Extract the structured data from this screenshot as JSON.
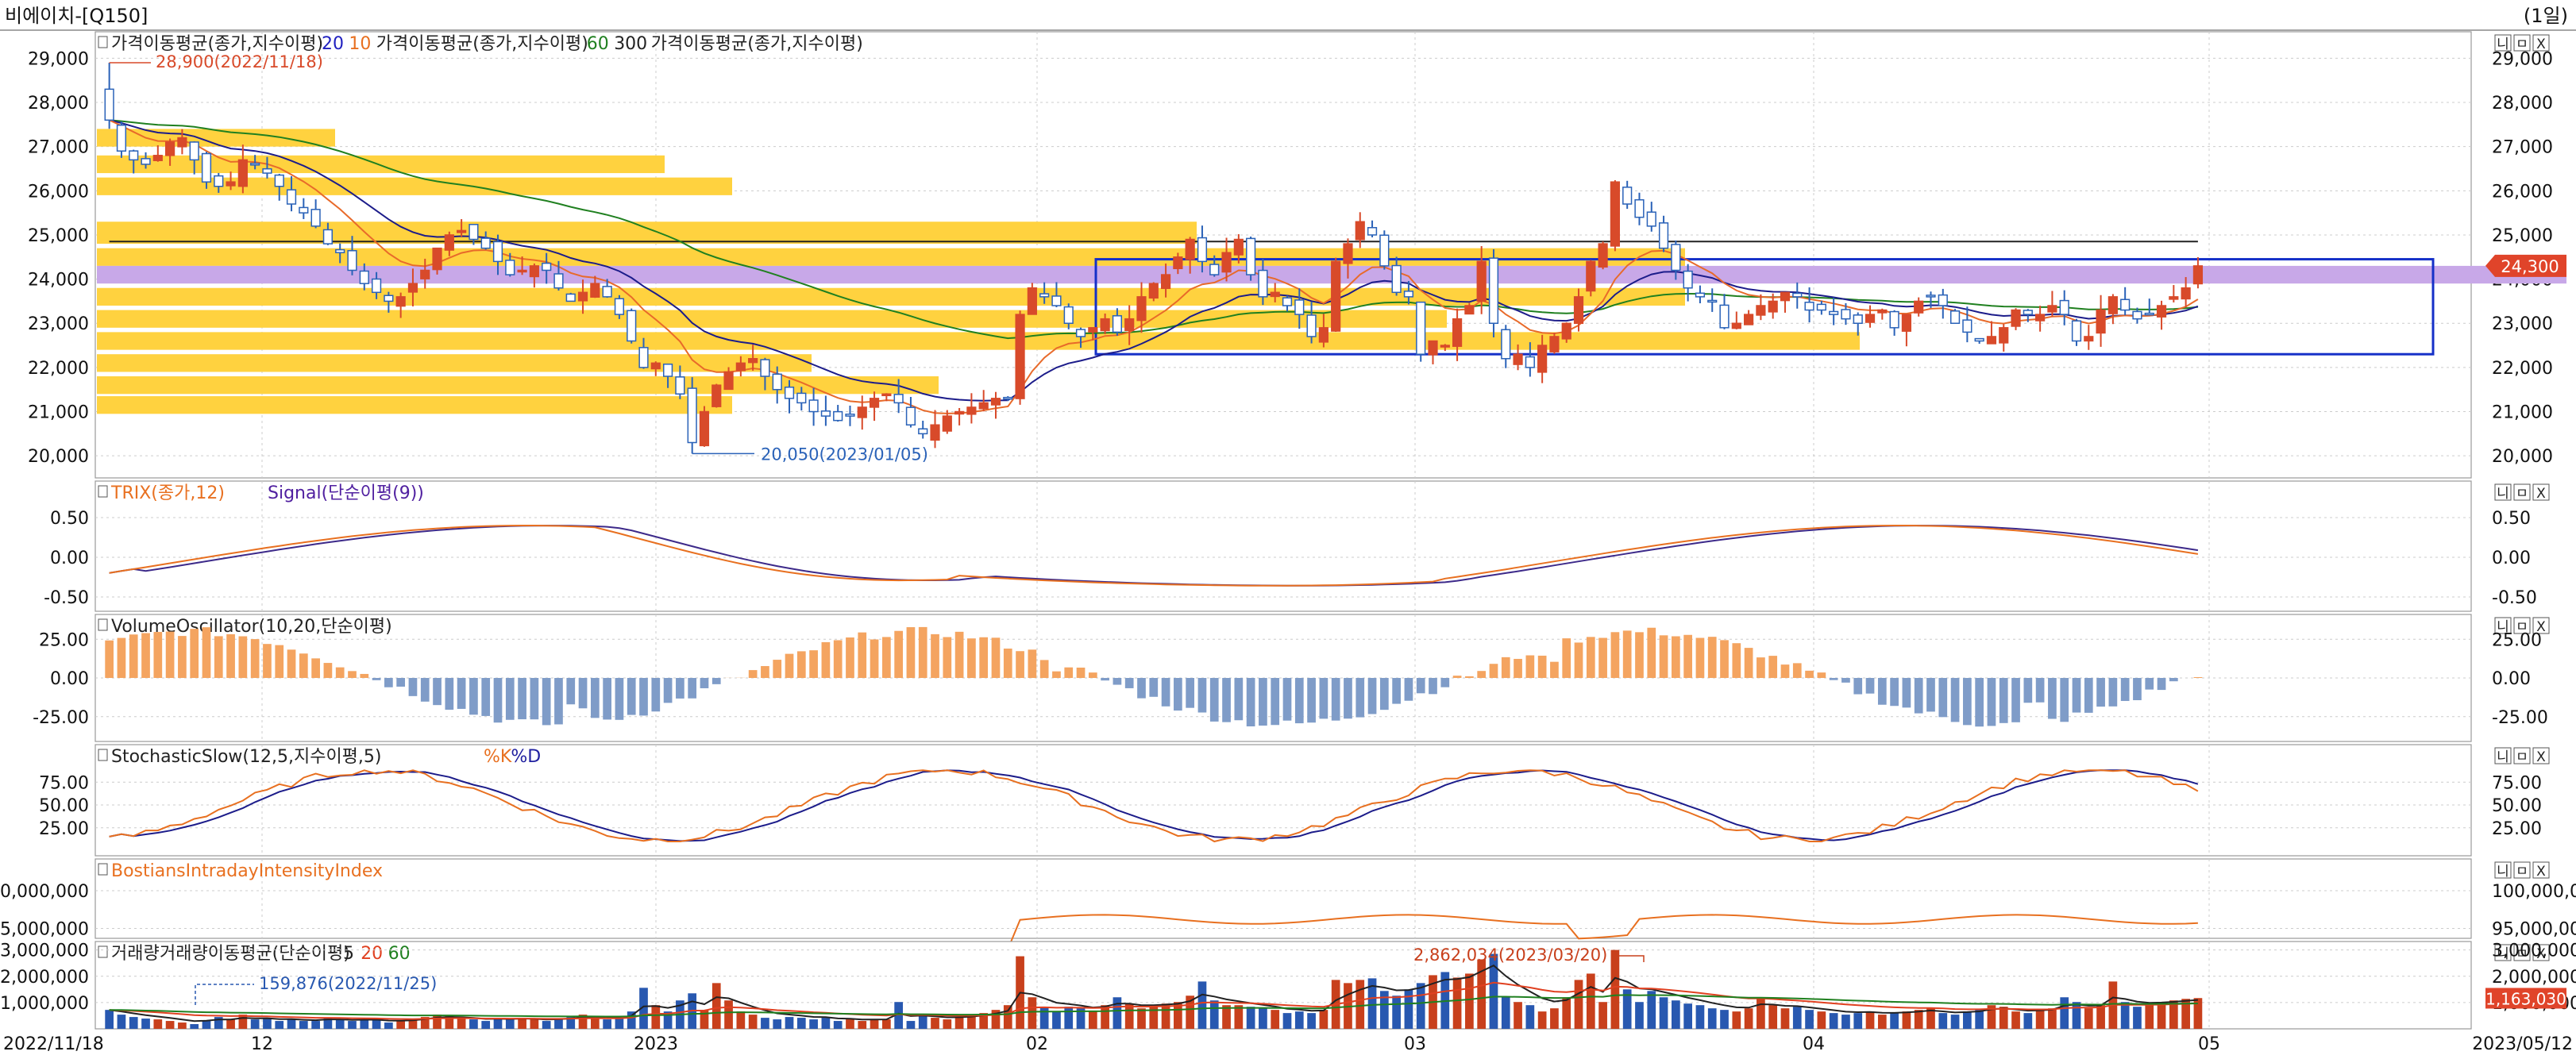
{
  "window": {
    "title": "비에이치-[Q150]",
    "period": "(1일)"
  },
  "panel_buttons": [
    "니",
    "ㅁ",
    "X"
  ],
  "price": {
    "legend": [
      {
        "text": "가격이동평균(종가,지수이평)",
        "color": "#222222"
      },
      {
        "text": "20",
        "color": "#2020c0"
      },
      {
        "text": "10",
        "color": "#e87020"
      },
      {
        "text": "가격이동평균(종가,지수이평)",
        "color": "#222222"
      },
      {
        "text": "60",
        "color": "#208020"
      },
      {
        "text": "300",
        "color": "#222222"
      },
      {
        "text": "가격이동평균(종가,지수이평)",
        "color": "#222222"
      }
    ],
    "y_ticks": [
      "29,000",
      "28,000",
      "27,000",
      "26,000",
      "25,000",
      "24,000",
      "23,000",
      "22,000",
      "21,000",
      "20,000"
    ],
    "y_min": 19500,
    "y_max": 29600,
    "high_annotation": "28,900(2022/11/18)",
    "low_annotation": "20,050(2023/01/05)",
    "current_price": "24,300",
    "up_color": "#d84a2a",
    "down_color": "#2a62b8",
    "volume_profile_color": "#ffd23f",
    "poc_color": "#c8a8e8",
    "box_color": "#1530c8"
  },
  "trix": {
    "legend": [
      {
        "text": "TRIX(종가,12)",
        "color": "#e87020"
      },
      {
        "text": "Signal(단순이평(9))",
        "color": "#5020a0"
      }
    ],
    "y_ticks": [
      "0.50",
      "0.00",
      "-0.50"
    ]
  },
  "volume_osc": {
    "legend": [
      {
        "text": "VolumeOscillator(10,20,단순이평)",
        "color": "#222222"
      }
    ],
    "y_ticks": [
      "25.00",
      "0.00",
      "-25.00"
    ],
    "pos_color": "#f4a460",
    "neg_color": "#7f9cc8"
  },
  "stochastic": {
    "legend": [
      {
        "text": "StochasticSlow(12,5,지수이평,5)",
        "color": "#222222"
      },
      {
        "text": "%K",
        "color": "#e87020"
      },
      {
        "text": "%D",
        "color": "#2020a0"
      }
    ],
    "y_ticks": [
      "75.00",
      "50.00",
      "25.00"
    ]
  },
  "bostian": {
    "legend": [
      {
        "text": "BostiansIntradayIntensityIndex",
        "color": "#e87020"
      }
    ],
    "y_ticks": [
      "100,000,000",
      "95,000,000"
    ]
  },
  "volume": {
    "legend": [
      {
        "text": "거래량",
        "color": "#222222"
      },
      {
        "text": "거래량이동평균(단순이평)",
        "color": "#222222"
      },
      {
        "text": "5",
        "color": "#222222"
      },
      {
        "text": "20",
        "color": "#e04020"
      },
      {
        "text": "60",
        "color": "#208020"
      }
    ],
    "y_ticks": [
      "3,000,000",
      "2,000,000",
      "1,000,000"
    ],
    "max_annotation": "2,862,034(2023/03/20)",
    "min_annotation": "159,876(2022/11/25)",
    "current_volume": "1,163,030"
  },
  "x_axis": {
    "labels": [
      "2022/11/18",
      "12",
      "2023",
      "02",
      "03",
      "04",
      "05",
      "2023/05/12"
    ]
  },
  "chart_data": {
    "type": "candlestick",
    "period": "daily",
    "date_range": [
      "2022/11/18",
      "2023/05/12"
    ],
    "price_axis": {
      "min": 19500,
      "max": 29600
    },
    "annotations": [
      {
        "label": "28,900(2022/11/18)",
        "value": 28900
      },
      {
        "label": "20,050(2023/01/05)",
        "value": 20050
      },
      {
        "label": "2,862,034(2023/03/20)",
        "value": 2862034
      },
      {
        "label": "159,876(2022/11/25)",
        "value": 159876
      }
    ],
    "last_close": 24300,
    "last_volume": 1163030,
    "close": [
      27600,
      26900,
      26700,
      26600,
      26800,
      27100,
      27200,
      26700,
      26200,
      26100,
      26200,
      26700,
      26600,
      26400,
      26100,
      25700,
      25500,
      25200,
      24800,
      24600,
      24200,
      23900,
      23700,
      23500,
      23600,
      23900,
      24200,
      24700,
      25000,
      25100,
      24900,
      24700,
      24400,
      24100,
      24200,
      24300,
      24200,
      23800,
      23500,
      23700,
      23900,
      23600,
      23200,
      22600,
      22000,
      22100,
      21800,
      21400,
      20300,
      21000,
      21600,
      21900,
      22100,
      22200,
      21800,
      21500,
      21300,
      21200,
      21000,
      20900,
      20800,
      20900,
      21100,
      21300,
      21400,
      21200,
      20700,
      20500,
      20700,
      20900,
      21000,
      21100,
      21200,
      21300,
      21300,
      23200,
      23800,
      23600,
      23400,
      23000,
      22700,
      22900,
      23100,
      22800,
      23100,
      23600,
      23900,
      24100,
      24500,
      24900,
      24400,
      24100,
      24600,
      24900,
      24100,
      23600,
      23700,
      23400,
      23200,
      22700,
      22900,
      24400,
      24800,
      25300,
      25000,
      24300,
      23700,
      23600,
      22300,
      22600,
      22500,
      23100,
      23400,
      24400,
      23000,
      22200,
      22300,
      22000,
      22500,
      22700,
      23000,
      23600,
      24400,
      24800,
      26200,
      25700,
      25400,
      25200,
      24700,
      24200,
      23800,
      23600,
      23500,
      22900,
      23000,
      23200,
      23400,
      23500,
      23700,
      23600,
      23300,
      23300,
      23200,
      23100,
      23000,
      23200,
      23300,
      22900,
      23200,
      23500,
      23600,
      23400,
      23000,
      22800,
      22600,
      22700,
      22900,
      23300,
      23200,
      23200,
      23400,
      23200,
      22600,
      22700,
      23300,
      23600,
      23300,
      23100,
      23200,
      23400,
      23600,
      23800,
      24300
    ],
    "volume_max": 3000000,
    "volume_ratio": [
      0.24,
      0.18,
      0.15,
      0.13,
      0.12,
      0.1,
      0.08,
      0.06,
      0.11,
      0.15,
      0.12,
      0.18,
      0.12,
      0.14,
      0.1,
      0.12,
      0.1,
      0.1,
      0.14,
      0.12,
      0.1,
      0.12,
      0.12,
      0.08,
      0.1,
      0.12,
      0.15,
      0.18,
      0.17,
      0.14,
      0.12,
      0.1,
      0.13,
      0.12,
      0.14,
      0.12,
      0.1,
      0.13,
      0.15,
      0.18,
      0.14,
      0.12,
      0.14,
      0.22,
      0.52,
      0.3,
      0.22,
      0.36,
      0.45,
      0.24,
      0.58,
      0.36,
      0.22,
      0.18,
      0.14,
      0.12,
      0.15,
      0.14,
      0.12,
      0.14,
      0.1,
      0.12,
      0.1,
      0.12,
      0.12,
      0.34,
      0.1,
      0.18,
      0.14,
      0.12,
      0.15,
      0.17,
      0.2,
      0.24,
      0.3,
      0.92,
      0.4,
      0.28,
      0.22,
      0.28,
      0.26,
      0.22,
      0.3,
      0.4,
      0.32,
      0.26,
      0.3,
      0.32,
      0.34,
      0.42,
      0.6,
      0.36,
      0.3,
      0.3,
      0.28,
      0.26,
      0.24,
      0.2,
      0.22,
      0.2,
      0.24,
      0.62,
      0.58,
      0.62,
      0.64,
      0.48,
      0.42,
      0.5,
      0.58,
      0.68,
      0.72,
      0.65,
      0.7,
      0.88,
      0.95,
      0.4,
      0.34,
      0.3,
      0.22,
      0.26,
      0.4,
      0.62,
      0.7,
      0.34,
      1.0,
      0.5,
      0.34,
      0.48,
      0.4,
      0.36,
      0.32,
      0.3,
      0.26,
      0.24,
      0.22,
      0.26,
      0.4,
      0.3,
      0.26,
      0.28,
      0.24,
      0.22,
      0.2,
      0.18,
      0.2,
      0.22,
      0.18,
      0.2,
      0.22,
      0.24,
      0.26,
      0.2,
      0.18,
      0.22,
      0.24,
      0.3,
      0.28,
      0.22,
      0.2,
      0.24,
      0.26,
      0.4,
      0.34,
      0.26,
      0.3,
      0.6,
      0.34,
      0.28,
      0.3,
      0.34,
      0.36,
      0.38,
      0.39
    ]
  }
}
